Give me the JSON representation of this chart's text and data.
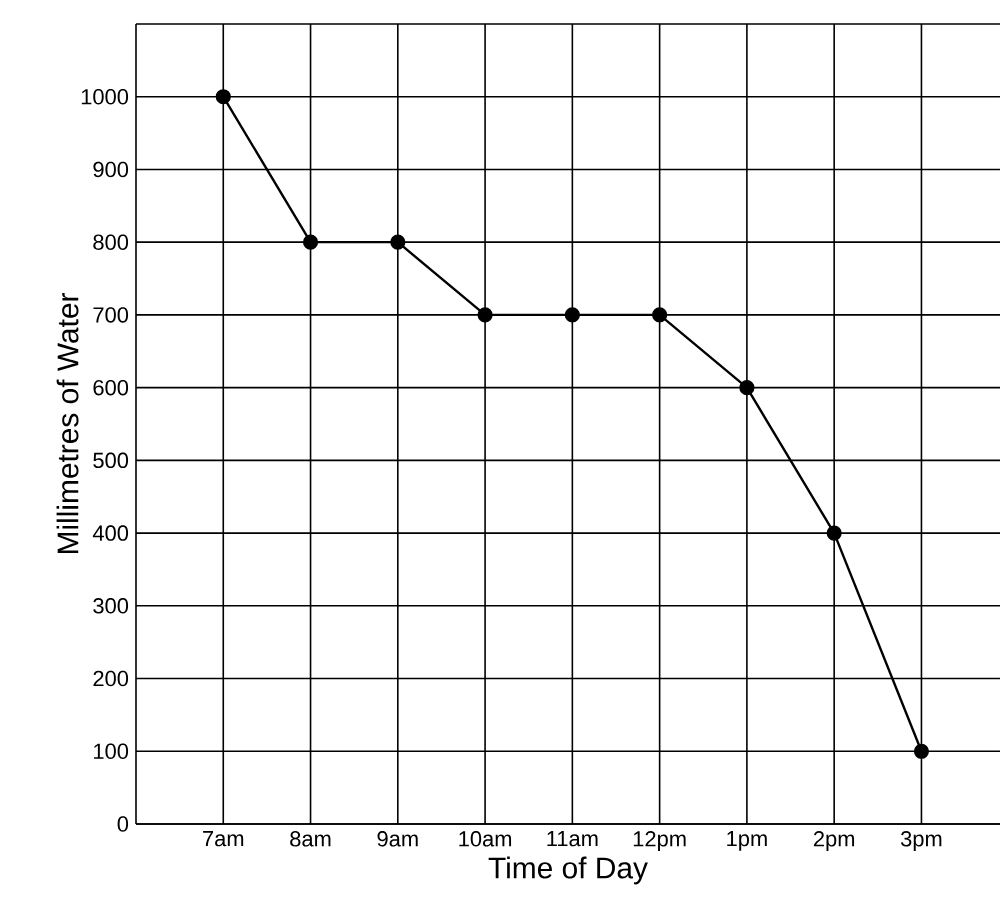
{
  "chart_data": {
    "type": "line",
    "xlabel": "Time of Day",
    "ylabel": "Millimetres of Water",
    "categories": [
      "7am",
      "8am",
      "9am",
      "10am",
      "11am",
      "12pm",
      "1pm",
      "2pm",
      "3pm"
    ],
    "series": [
      {
        "color": "#000000",
        "values": [
          1000,
          800,
          800,
          700,
          700,
          700,
          600,
          400,
          100
        ]
      }
    ],
    "ylim": [
      0,
      1100
    ],
    "yticks": [
      0,
      100,
      200,
      300,
      400,
      500,
      600,
      700,
      800,
      900,
      1000,
      {
        "value": 1100,
        "label": null
      }
    ],
    "grid": true,
    "marker": "circle",
    "line_style": "solid"
  }
}
